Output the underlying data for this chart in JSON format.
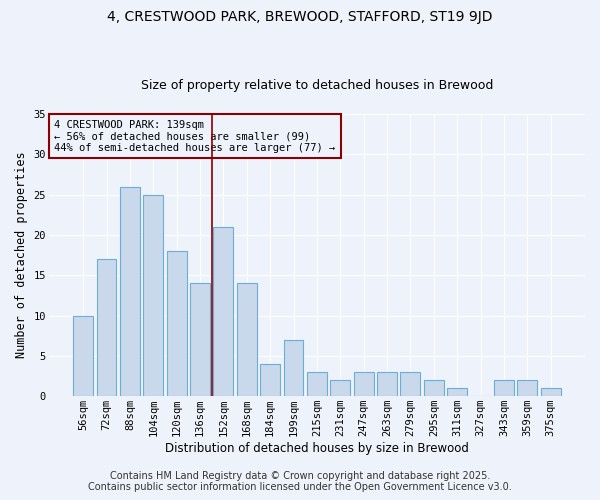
{
  "title": "4, CRESTWOOD PARK, BREWOOD, STAFFORD, ST19 9JD",
  "subtitle": "Size of property relative to detached houses in Brewood",
  "xlabel": "Distribution of detached houses by size in Brewood",
  "ylabel": "Number of detached properties",
  "categories": [
    "56sqm",
    "72sqm",
    "88sqm",
    "104sqm",
    "120sqm",
    "136sqm",
    "152sqm",
    "168sqm",
    "184sqm",
    "199sqm",
    "215sqm",
    "231sqm",
    "247sqm",
    "263sqm",
    "279sqm",
    "295sqm",
    "311sqm",
    "327sqm",
    "343sqm",
    "359sqm",
    "375sqm"
  ],
  "values": [
    10,
    17,
    26,
    25,
    18,
    14,
    21,
    14,
    4,
    7,
    3,
    2,
    3,
    3,
    3,
    2,
    1,
    0,
    2,
    2,
    1
  ],
  "bar_color": "#c9d9eb",
  "bar_edge_color": "#6baed6",
  "ylim": [
    0,
    35
  ],
  "yticks": [
    0,
    5,
    10,
    15,
    20,
    25,
    30,
    35
  ],
  "property_line_x": 5.5,
  "property_line_color": "#8b0000",
  "annotation_text": "4 CRESTWOOD PARK: 139sqm\n← 56% of detached houses are smaller (99)\n44% of semi-detached houses are larger (77) →",
  "annotation_box_color": "#8b0000",
  "footer1": "Contains HM Land Registry data © Crown copyright and database right 2025.",
  "footer2": "Contains public sector information licensed under the Open Government Licence v3.0.",
  "background_color": "#eef2fa",
  "grid_color": "#ffffff",
  "title_fontsize": 10,
  "subtitle_fontsize": 9,
  "label_fontsize": 8.5,
  "tick_fontsize": 7.5,
  "annot_fontsize": 7.5,
  "footer_fontsize": 7
}
